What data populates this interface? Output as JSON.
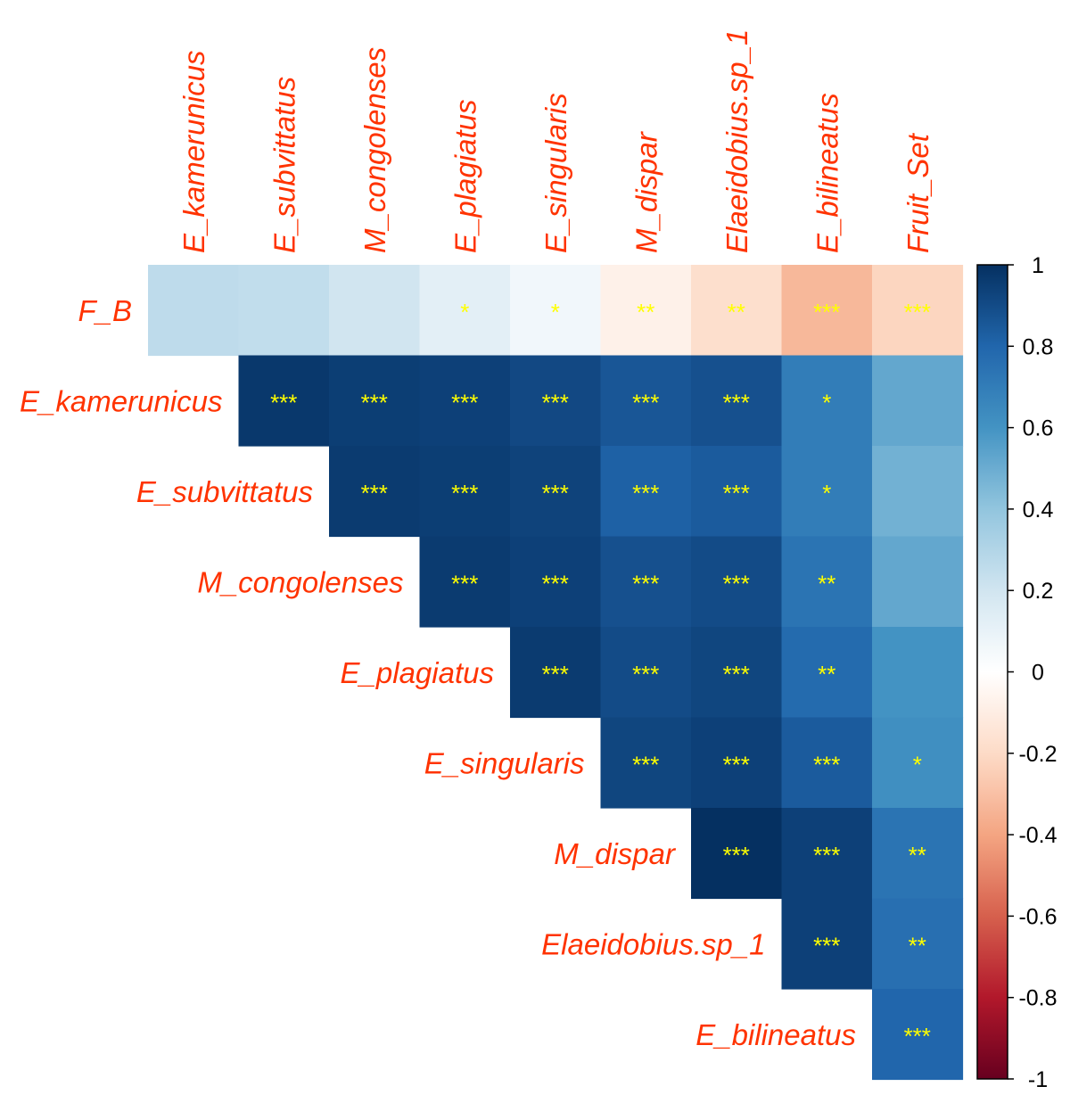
{
  "chart_data": {
    "type": "heatmap",
    "column_labels": [
      "E_kamerunicus",
      "E_subvittatus",
      "M_congolenses",
      "E_plagiatus",
      "E_singularis",
      "M_dispar",
      "Elaeidobius.sp_1",
      "E_bilineatus",
      "Fruit_Set"
    ],
    "row_labels": [
      "F_B",
      "E_kamerunicus",
      "E_subvittatus",
      "M_congolenses",
      "E_plagiatus",
      "E_singularis",
      "M_dispar",
      "Elaeidobius.sp_1",
      "E_bilineatus"
    ],
    "values": [
      [
        0.26,
        0.25,
        0.2,
        0.12,
        0.06,
        -0.08,
        -0.18,
        -0.33,
        -0.22
      ],
      [
        null,
        0.97,
        0.95,
        0.94,
        0.91,
        0.86,
        0.88,
        0.7,
        0.52
      ],
      [
        null,
        null,
        0.96,
        0.95,
        0.93,
        0.82,
        0.84,
        0.7,
        0.48
      ],
      [
        null,
        null,
        null,
        0.96,
        0.94,
        0.88,
        0.9,
        0.74,
        0.52
      ],
      [
        null,
        null,
        null,
        null,
        0.96,
        0.9,
        0.92,
        0.78,
        0.6
      ],
      [
        null,
        null,
        null,
        null,
        null,
        0.92,
        0.94,
        0.84,
        0.62
      ],
      [
        null,
        null,
        null,
        null,
        null,
        null,
        1.0,
        0.94,
        0.74
      ],
      [
        null,
        null,
        null,
        null,
        null,
        null,
        null,
        0.94,
        0.76
      ],
      [
        null,
        null,
        null,
        null,
        null,
        null,
        null,
        null,
        0.8
      ]
    ],
    "significance": [
      [
        "",
        "",
        "",
        "*",
        "*",
        "**",
        "**",
        "***",
        "***"
      ],
      [
        "",
        "***",
        "***",
        "***",
        "***",
        "***",
        "***",
        "*",
        ""
      ],
      [
        "",
        "",
        "***",
        "***",
        "***",
        "***",
        "***",
        "*",
        ""
      ],
      [
        "",
        "",
        "",
        "***",
        "***",
        "***",
        "***",
        "**",
        ""
      ],
      [
        "",
        "",
        "",
        "",
        "***",
        "***",
        "***",
        "**",
        ""
      ],
      [
        "",
        "",
        "",
        "",
        "",
        "***",
        "***",
        "***",
        "*"
      ],
      [
        "",
        "",
        "",
        "",
        "",
        "",
        "***",
        "***",
        "**"
      ],
      [
        "",
        "",
        "",
        "",
        "",
        "",
        "",
        "***",
        "**"
      ],
      [
        "",
        "",
        "",
        "",
        "",
        "",
        "",
        "",
        "***"
      ]
    ],
    "colorbar": {
      "range": [
        -1,
        1
      ],
      "ticks": [
        "1",
        "0.8",
        "0.6",
        "0.4",
        "0.2",
        "0",
        "-0.2",
        "-0.4",
        "-0.6",
        "-0.8",
        "-1"
      ],
      "tick_values": [
        1,
        0.8,
        0.6,
        0.4,
        0.2,
        0,
        -0.2,
        -0.4,
        -0.6,
        -0.8,
        -1
      ]
    },
    "palette": {
      "negative_end": "#67001F",
      "mid": "#FFFFFF",
      "positive_end": "#053061"
    },
    "label_color": "#FF3300",
    "star_color": "#FFFF00"
  }
}
